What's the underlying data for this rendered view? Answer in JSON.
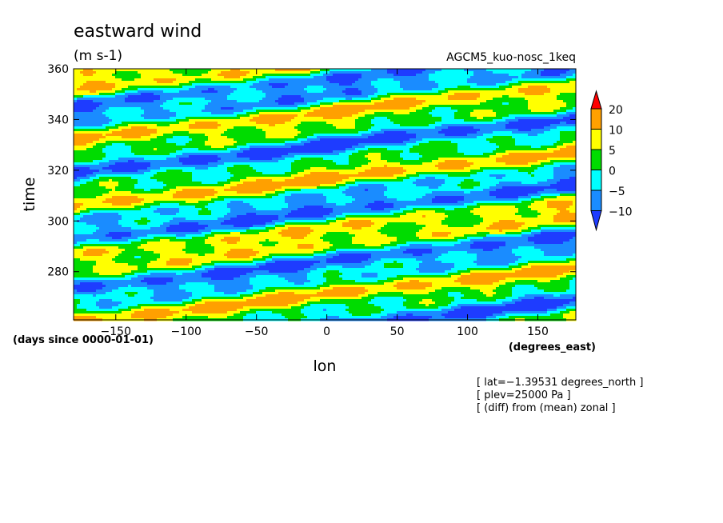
{
  "chart_data": {
    "type": "heatmap",
    "title": "eastward wind",
    "subtitle": "(m s-1)",
    "experiment": "AGCM5_kuo-nosc_1keq",
    "xlabel": "lon",
    "x_units": "(degrees_east)",
    "ylabel": "time",
    "y_units": "(days since 0000-01-01)",
    "xlim": [
      -180,
      177
    ],
    "ylim": [
      261,
      360
    ],
    "x_ticks": [
      {
        "value": -150,
        "label": "−150"
      },
      {
        "value": -100,
        "label": "−100"
      },
      {
        "value": -50,
        "label": "−50"
      },
      {
        "value": 0,
        "label": "0"
      },
      {
        "value": 50,
        "label": "50"
      },
      {
        "value": 100,
        "label": "100"
      },
      {
        "value": 150,
        "label": "150"
      }
    ],
    "y_ticks": [
      {
        "value": 280,
        "label": "280"
      },
      {
        "value": 300,
        "label": "300"
      },
      {
        "value": 320,
        "label": "320"
      },
      {
        "value": 340,
        "label": "340"
      },
      {
        "value": 360,
        "label": "360"
      }
    ],
    "colorbar": {
      "levels": [
        -10,
        -5,
        0,
        5,
        10,
        20
      ],
      "level_labels": [
        "−10",
        "−5",
        "0",
        "5",
        "10",
        "20"
      ],
      "colors": [
        "#1e3cff",
        "#1a8cff",
        "#00ffff",
        "#00dc00",
        "#ffff00",
        "#ffa000",
        "#ff0000"
      ],
      "extend": "both"
    },
    "annotations": [
      "[ lat=−1.39531 degrees_north ]",
      "[ plev=25000 Pa ]",
      "[ (diff) from (mean) zonal ]"
    ],
    "grid": false
  }
}
